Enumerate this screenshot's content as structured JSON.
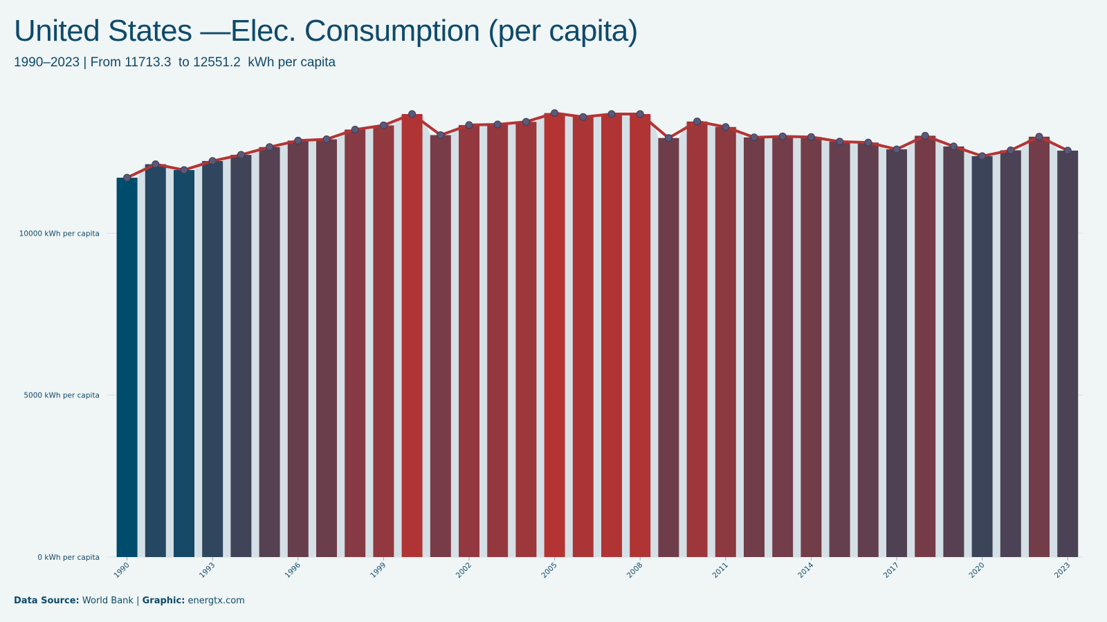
{
  "header": {
    "title": "United States —Elec. Consumption (per capita)",
    "subtitle": "1990–2023 | From 11713.3  to 12551.2  kWh per capita"
  },
  "footer": {
    "source_label": "Data Source:",
    "source_value": "World Bank",
    "separator": "|",
    "graphic_label": "Graphic:",
    "graphic_value": "energtx.com"
  },
  "colors": {
    "background": "#f0f5f5",
    "low": "#004c6d",
    "high": "#b43434",
    "line": "#b43434",
    "shadow": "#d5e0e6",
    "gridline": "#d8dfe3"
  },
  "chart_data": {
    "type": "bar",
    "categories": [
      "1990",
      "1991",
      "1992",
      "1993",
      "1994",
      "1995",
      "1996",
      "1997",
      "1998",
      "1999",
      "2000",
      "2001",
      "2002",
      "2003",
      "2004",
      "2005",
      "2006",
      "2007",
      "2008",
      "2009",
      "2010",
      "2011",
      "2012",
      "2013",
      "2014",
      "2015",
      "2016",
      "2017",
      "2018",
      "2019",
      "2020",
      "2021",
      "2022",
      "2023"
    ],
    "values": [
      11713.3,
      12130,
      11950,
      12230,
      12420,
      12660,
      12860,
      12900,
      13200,
      13330,
      13680,
      13030,
      13340,
      13360,
      13440,
      13710,
      13590,
      13680,
      13680,
      12940,
      13450,
      13280,
      12960,
      12990,
      12970,
      12830,
      12800,
      12590,
      13010,
      12680,
      12380,
      12560,
      12980,
      12551.2
    ],
    "tick_labels": [
      "1990",
      "1993",
      "1996",
      "1999",
      "2002",
      "2005",
      "2008",
      "2011",
      "2014",
      "2017",
      "2020",
      "2023"
    ],
    "y_ticks": [
      0,
      5000,
      10000
    ],
    "y_tick_labels": [
      "0 kWh per capita",
      "5000 kWh per capita",
      "10000 kWh per capita"
    ],
    "ylim": [
      0,
      14000
    ],
    "grid": true,
    "xlabel": "",
    "ylabel": ""
  }
}
